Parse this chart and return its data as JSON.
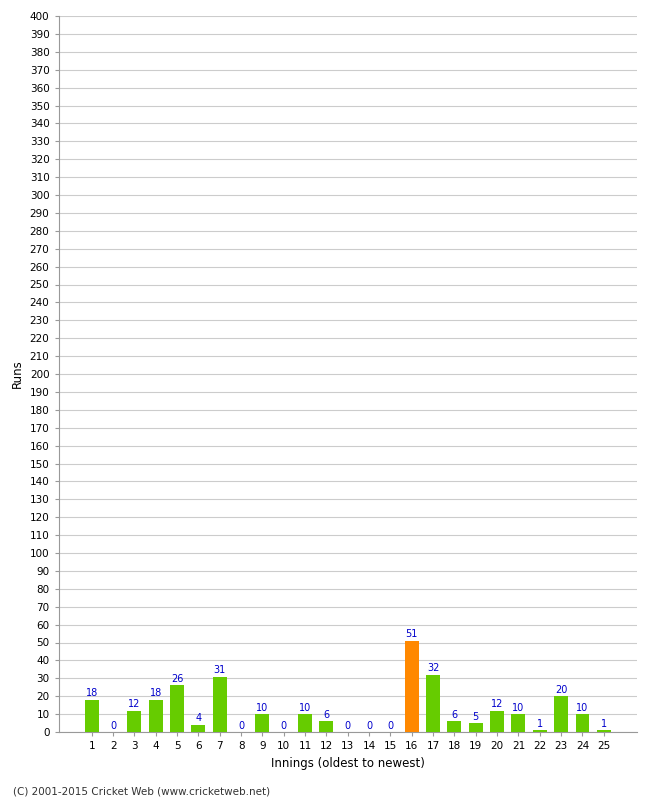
{
  "innings": [
    1,
    2,
    3,
    4,
    5,
    6,
    7,
    8,
    9,
    10,
    11,
    12,
    13,
    14,
    15,
    16,
    17,
    18,
    19,
    20,
    21,
    22,
    23,
    24,
    25
  ],
  "values": [
    18,
    0,
    12,
    18,
    26,
    4,
    31,
    0,
    10,
    0,
    10,
    6,
    0,
    0,
    0,
    51,
    32,
    6,
    5,
    12,
    10,
    1,
    20,
    10,
    1
  ],
  "colors": [
    "#66cc00",
    "#66cc00",
    "#66cc00",
    "#66cc00",
    "#66cc00",
    "#66cc00",
    "#66cc00",
    "#66cc00",
    "#66cc00",
    "#66cc00",
    "#66cc00",
    "#66cc00",
    "#66cc00",
    "#66cc00",
    "#66cc00",
    "#ff8800",
    "#66cc00",
    "#66cc00",
    "#66cc00",
    "#66cc00",
    "#66cc00",
    "#66cc00",
    "#66cc00",
    "#66cc00",
    "#66cc00"
  ],
  "label_color": "#0000cc",
  "xlabel": "Innings (oldest to newest)",
  "ylabel": "Runs",
  "ylim": [
    0,
    400
  ],
  "yticks": [
    0,
    10,
    20,
    30,
    40,
    50,
    60,
    70,
    80,
    90,
    100,
    110,
    120,
    130,
    140,
    150,
    160,
    170,
    180,
    190,
    200,
    210,
    220,
    230,
    240,
    250,
    260,
    270,
    280,
    290,
    300,
    310,
    320,
    330,
    340,
    350,
    360,
    370,
    380,
    390,
    400
  ],
  "footer": "(C) 2001-2015 Cricket Web (www.cricketweb.net)",
  "background_color": "#ffffff",
  "grid_color": "#cccccc",
  "spine_color": "#999999"
}
